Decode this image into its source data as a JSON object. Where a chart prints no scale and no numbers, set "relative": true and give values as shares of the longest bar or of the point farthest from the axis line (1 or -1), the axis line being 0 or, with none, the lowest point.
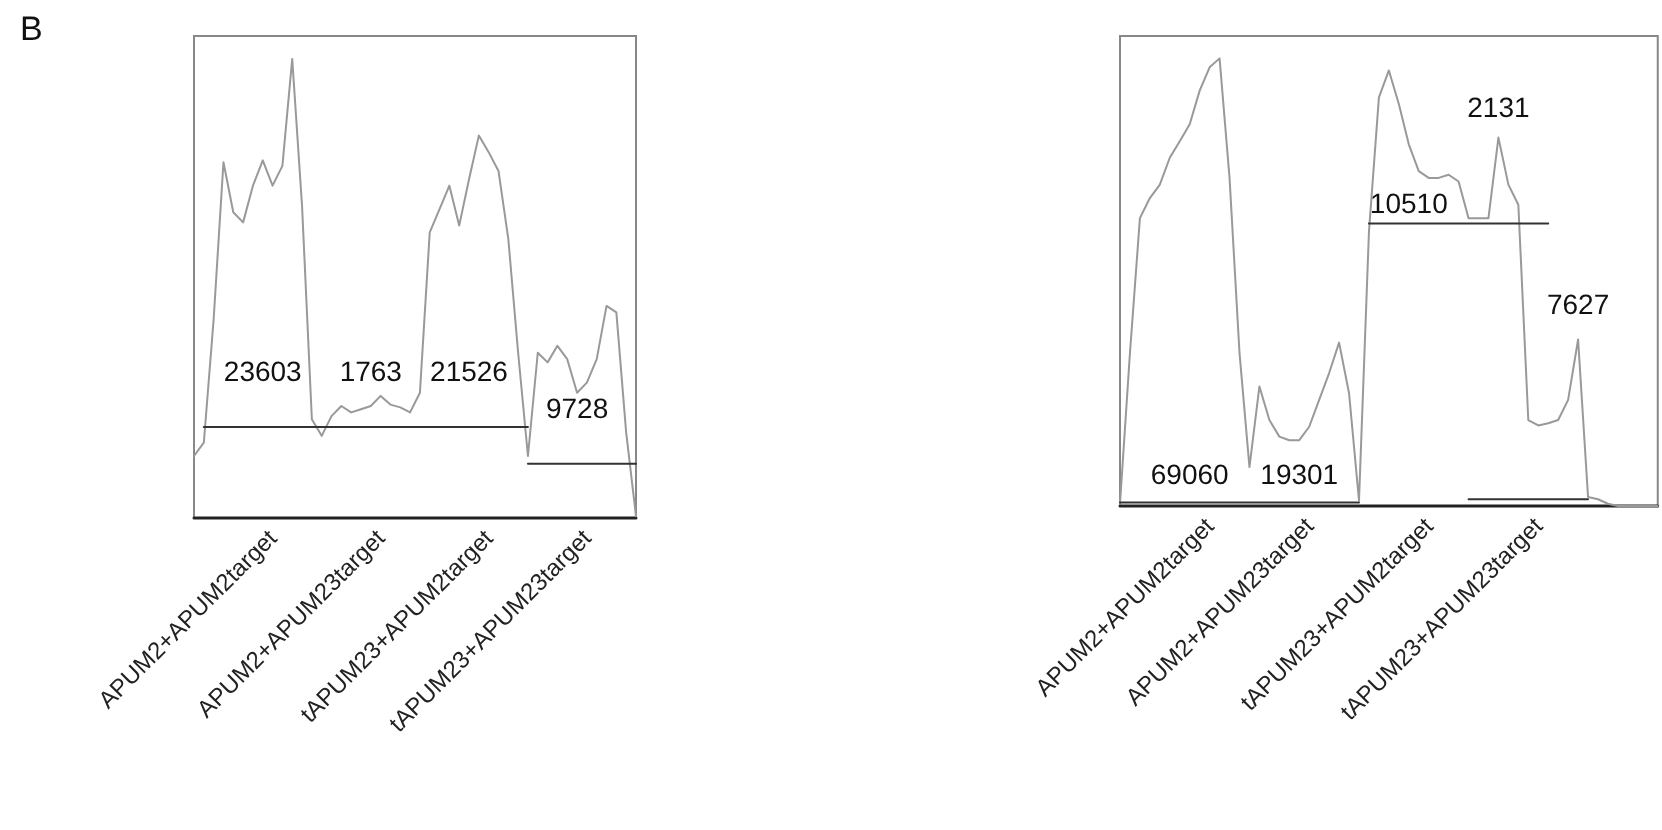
{
  "chart_data": [
    {
      "type": "line",
      "relative": true,
      "marker": "none",
      "annotations": [
        "B",
        "23603",
        "1763",
        "21526",
        "9728"
      ],
      "categories": [
        null,
        null,
        null,
        null,
        null,
        null,
        null,
        null,
        "APUM2+APUM2target",
        null,
        null,
        null,
        null,
        null,
        null,
        null,
        null,
        null,
        null,
        "APUM2+APUM23target",
        null,
        null,
        null,
        null,
        null,
        null,
        null,
        null,
        null,
        null,
        "tAPUM23+APUM2target",
        null,
        null,
        null,
        null,
        null,
        null,
        null,
        null,
        null,
        "tAPUM23+APUM23target",
        null,
        null,
        null,
        null,
        null
      ],
      "series": [
        {
          "color": "#999999",
          "values": [
            0.135,
            0.164,
            0.433,
            0.775,
            0.666,
            0.644,
            0.724,
            0.779,
            0.724,
            0.767,
            1.0,
            0.68,
            0.215,
            0.179,
            0.222,
            0.244,
            0.23,
            0.237,
            0.244,
            0.266,
            0.247,
            0.241,
            0.23,
            0.273,
            0.622,
            0.673,
            0.724,
            0.637,
            0.738,
            0.833,
            0.797,
            0.756,
            0.608,
            0.36,
            0.135,
            0.36,
            0.339,
            0.375,
            0.346,
            0.273,
            0.295,
            0.346,
            0.462,
            0.448,
            0.186,
            0.004
          ]
        },
        {
          "color": "#333333",
          "values": [
            null,
            0.198,
            0.198,
            0.198,
            0.198,
            0.198,
            0.198,
            0.198,
            0.198,
            0.198,
            0.198,
            0.198,
            0.198,
            0.198,
            0.198,
            0.198,
            0.198,
            0.198,
            0.198,
            0.198,
            0.198,
            0.198,
            0.198,
            0.198,
            0.198,
            0.198,
            0.198,
            0.198,
            0.198,
            0.198,
            0.198,
            0.198,
            0.198,
            0.198,
            0.198,
            null,
            null,
            null,
            null,
            null,
            null,
            null,
            null,
            null,
            null,
            null
          ]
        },
        {
          "color": "#333333",
          "values": [
            null,
            null,
            null,
            null,
            null,
            null,
            null,
            null,
            null,
            null,
            null,
            null,
            null,
            null,
            null,
            null,
            null,
            null,
            null,
            null,
            null,
            null,
            null,
            null,
            null,
            null,
            null,
            null,
            null,
            null,
            null,
            null,
            null,
            null,
            0.118,
            0.118,
            0.118,
            0.118,
            0.118,
            0.118,
            0.118,
            0.118,
            0.118,
            0.118,
            0.118,
            0.118
          ]
        }
      ]
    },
    {
      "type": "line",
      "relative": true,
      "marker": "none",
      "annotations": [
        "69060",
        "19301",
        "10510",
        "2131",
        "7627"
      ],
      "categories": [
        null,
        null,
        null,
        null,
        null,
        null,
        null,
        null,
        null,
        "APUM2+APUM2target",
        null,
        null,
        null,
        null,
        null,
        null,
        null,
        null,
        null,
        "APUM2+APUM23target",
        null,
        null,
        null,
        null,
        null,
        null,
        null,
        null,
        null,
        null,
        null,
        "tAPUM23+APUM2target",
        null,
        null,
        null,
        null,
        null,
        null,
        null,
        null,
        null,
        null,
        "tAPUM23+APUM23target",
        null,
        null,
        null,
        null,
        null,
        null,
        null,
        null,
        null,
        null,
        null,
        null
      ],
      "series": [
        {
          "color": "#999999",
          "values": [
            0.005,
            0.342,
            0.643,
            0.688,
            0.718,
            0.778,
            0.815,
            0.853,
            0.928,
            0.98,
            1.0,
            0.733,
            0.342,
            0.087,
            0.267,
            0.192,
            0.155,
            0.147,
            0.147,
            0.177,
            0.237,
            0.297,
            0.365,
            0.252,
            0.012,
            0.613,
            0.913,
            0.973,
            0.898,
            0.808,
            0.748,
            0.733,
            0.733,
            0.74,
            0.725,
            0.643,
            0.643,
            0.643,
            0.823,
            0.718,
            0.673,
            0.192,
            0.18,
            0.185,
            0.192,
            0.237,
            0.372,
            0.02,
            0.015,
            0.005,
            0,
            0,
            0,
            0,
            0
          ]
        },
        {
          "color": "#333333",
          "values": [
            0.008,
            0.008,
            0.008,
            0.008,
            0.008,
            0.008,
            0.008,
            0.008,
            0.008,
            0.008,
            0.008,
            0.008,
            0.008,
            0.008,
            0.008,
            0.008,
            0.008,
            0.008,
            0.008,
            0.008,
            0.008,
            0.008,
            0.008,
            0.008,
            0.008,
            null,
            null,
            null,
            null,
            null,
            null,
            null,
            null,
            null,
            null,
            null,
            null,
            null,
            null,
            null,
            null,
            null,
            null,
            null,
            null,
            null,
            null,
            null,
            null,
            null,
            null,
            null,
            null,
            null,
            null
          ]
        },
        {
          "color": "#333333",
          "values": [
            null,
            null,
            null,
            null,
            null,
            null,
            null,
            null,
            null,
            null,
            null,
            null,
            null,
            null,
            null,
            null,
            null,
            null,
            null,
            null,
            null,
            null,
            null,
            null,
            null,
            0.631,
            0.631,
            0.631,
            0.631,
            0.631,
            0.631,
            0.631,
            0.631,
            0.631,
            0.631,
            0.631,
            0.631,
            0.631,
            0.631,
            0.631,
            0.631,
            0.631,
            0.631,
            0.631,
            null,
            null,
            null,
            null,
            null,
            null,
            null,
            null,
            null,
            null,
            null
          ]
        },
        {
          "color": "#333333",
          "values": [
            null,
            null,
            null,
            null,
            null,
            null,
            null,
            null,
            null,
            null,
            null,
            null,
            null,
            null,
            null,
            null,
            null,
            null,
            null,
            null,
            null,
            null,
            null,
            null,
            null,
            null,
            null,
            null,
            null,
            null,
            null,
            null,
            null,
            null,
            null,
            0.015,
            0.015,
            0.015,
            0.015,
            0.015,
            0.015,
            0.015,
            0.015,
            0.015,
            0.015,
            0.015,
            0.015,
            0.015,
            null,
            null,
            null,
            null,
            null,
            null,
            null
          ]
        }
      ]
    }
  ]
}
